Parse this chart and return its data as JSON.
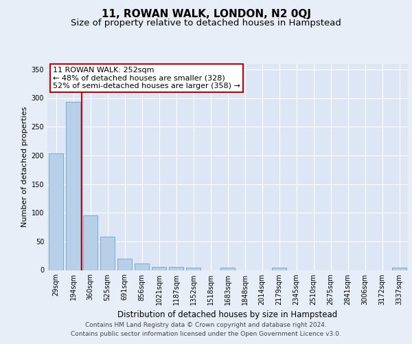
{
  "title": "11, ROWAN WALK, LONDON, N2 0QJ",
  "subtitle": "Size of property relative to detached houses in Hampstead",
  "xlabel": "Distribution of detached houses by size in Hampstead",
  "ylabel": "Number of detached properties",
  "categories": [
    "29sqm",
    "194sqm",
    "360sqm",
    "525sqm",
    "691sqm",
    "856sqm",
    "1021sqm",
    "1187sqm",
    "1352sqm",
    "1518sqm",
    "1683sqm",
    "1848sqm",
    "2014sqm",
    "2179sqm",
    "2345sqm",
    "2510sqm",
    "2675sqm",
    "2841sqm",
    "3006sqm",
    "3172sqm",
    "3337sqm"
  ],
  "values": [
    203,
    293,
    96,
    58,
    20,
    11,
    6,
    5,
    4,
    0,
    4,
    0,
    0,
    4,
    0,
    0,
    0,
    0,
    0,
    0,
    4
  ],
  "bar_color": "#b8cfe8",
  "bar_edge_color": "#7aaad0",
  "property_line_label": "11 ROWAN WALK: 252sqm",
  "annotation_line1": "← 48% of detached houses are smaller (328)",
  "annotation_line2": "52% of semi-detached houses are larger (358) →",
  "line_color": "#cc0000",
  "annotation_box_color": "#ffffff",
  "annotation_box_edge": "#cc0000",
  "ylim": [
    0,
    360
  ],
  "yticks": [
    0,
    50,
    100,
    150,
    200,
    250,
    300,
    350
  ],
  "background_color": "#e8eef7",
  "plot_background": "#dce6f5",
  "footer_line1": "Contains HM Land Registry data © Crown copyright and database right 2024.",
  "footer_line2": "Contains public sector information licensed under the Open Government Licence v3.0.",
  "title_fontsize": 11,
  "subtitle_fontsize": 9.5,
  "axis_label_fontsize": 8,
  "tick_fontsize": 7,
  "annotation_fontsize": 8,
  "footer_fontsize": 6.5
}
